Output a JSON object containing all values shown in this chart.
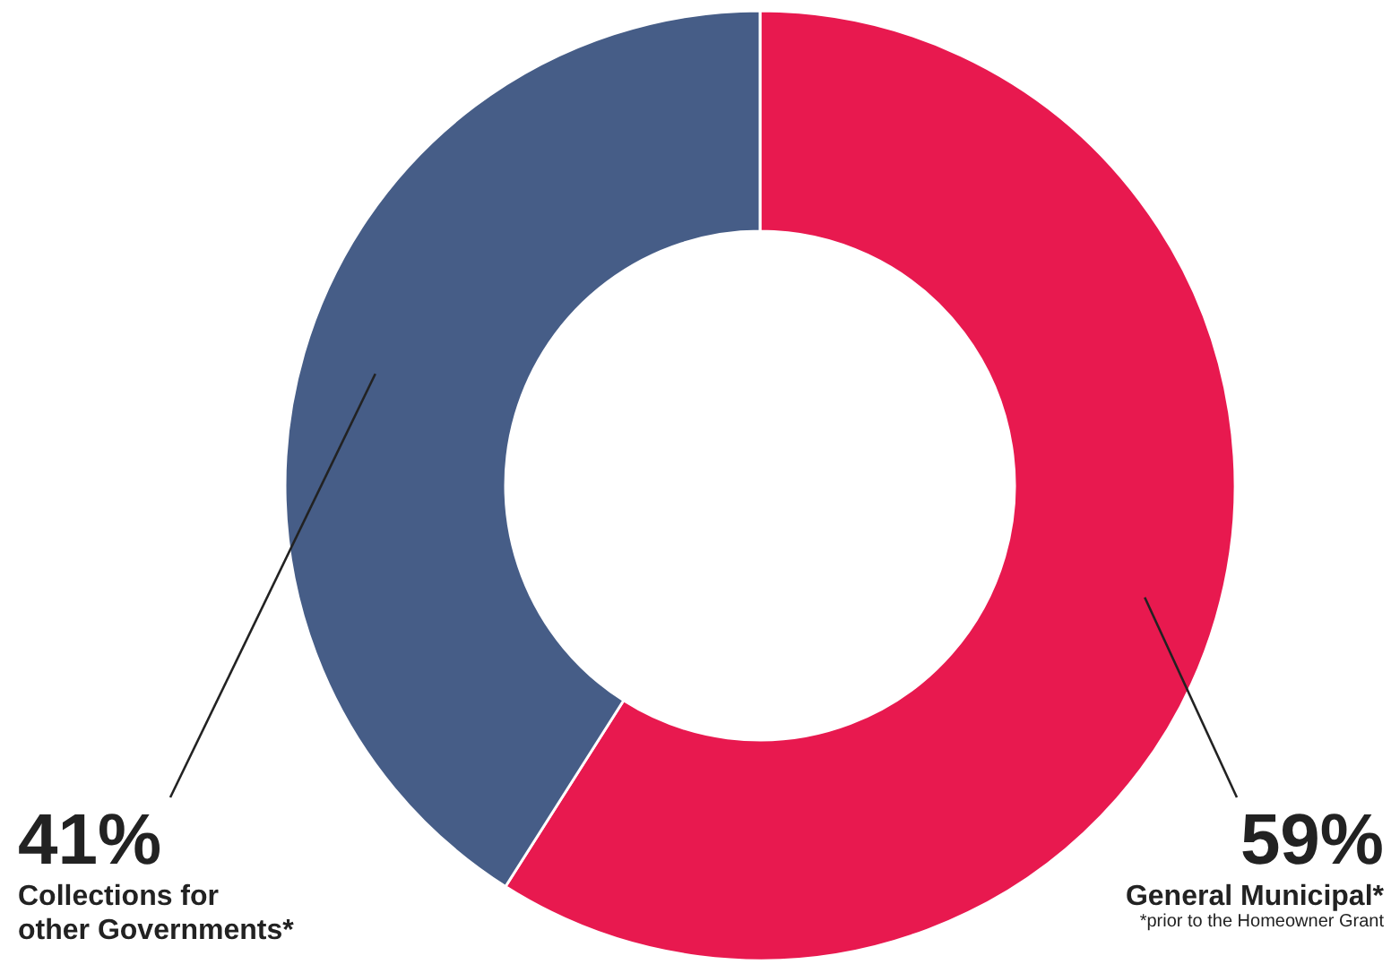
{
  "chart_data": {
    "type": "donut",
    "categories": [
      "General Municipal*",
      "Collections for other Governments*"
    ],
    "values": [
      59,
      41
    ],
    "colors": [
      "#e8194f",
      "#465d87"
    ],
    "value_labels": [
      "59%",
      "41%"
    ],
    "annotations": [
      "*prior to the Homeowner Grant"
    ]
  }
}
